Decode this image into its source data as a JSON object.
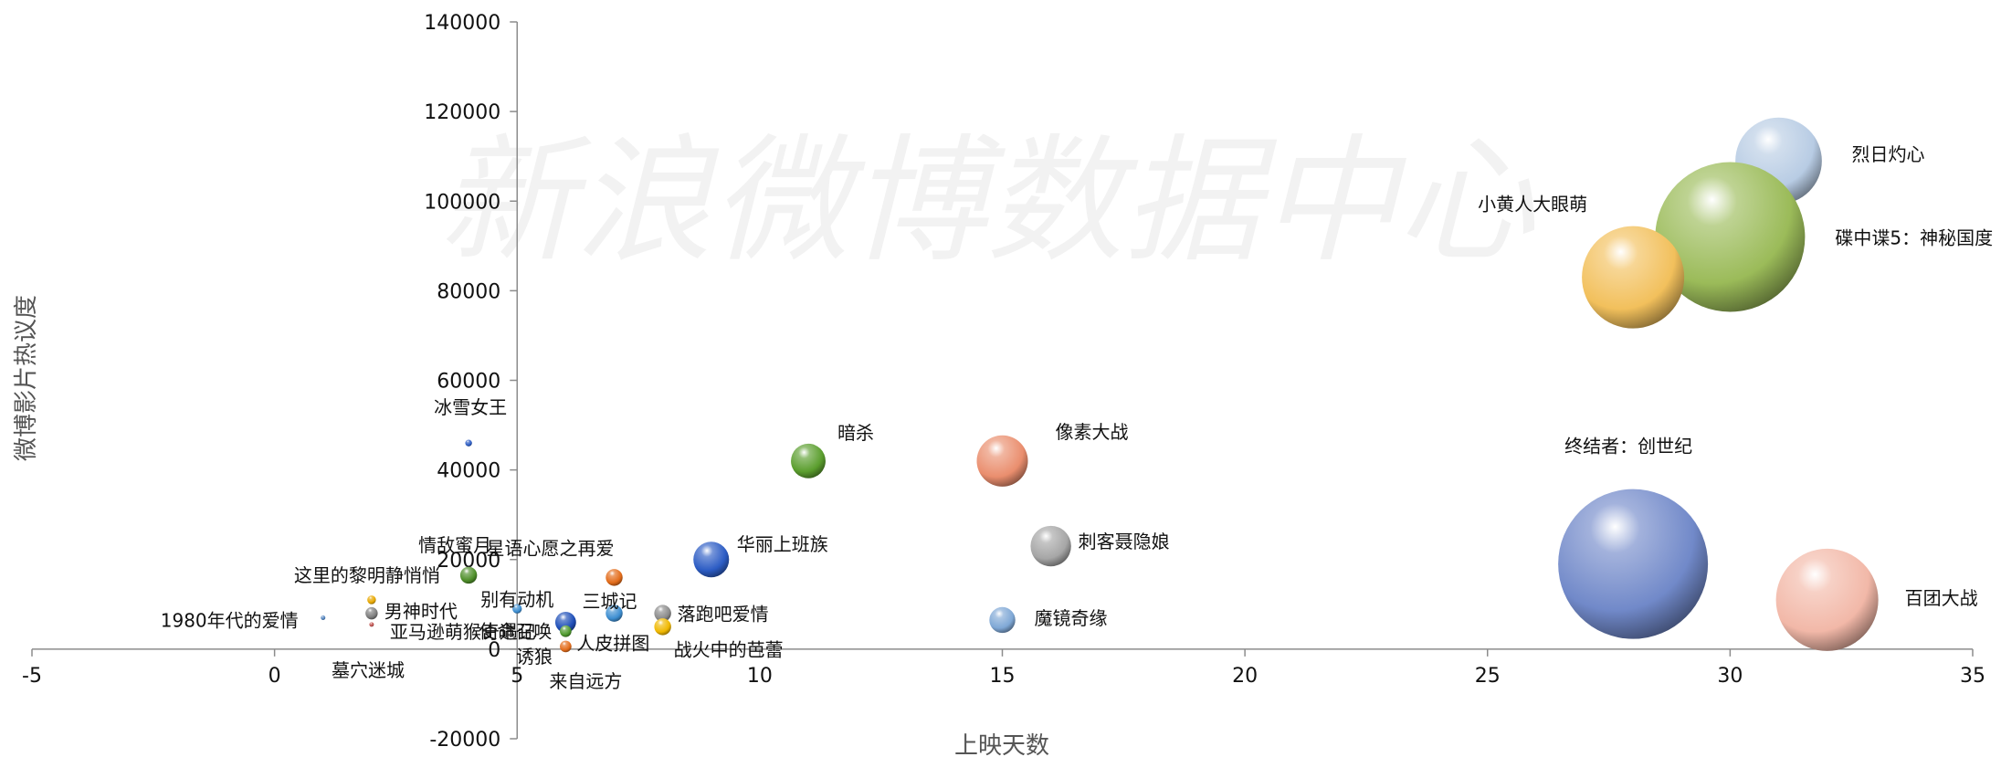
{
  "watermark": "新浪微博数据中心",
  "chart_data": {
    "type": "bubble",
    "xlabel": "上映天数",
    "ylabel": "微博影片热议度",
    "xlim": [
      -5,
      35
    ],
    "ylim": [
      -20000,
      140000
    ],
    "x_ticks": [
      -5,
      0,
      5,
      10,
      15,
      20,
      25,
      30,
      35
    ],
    "y_ticks": [
      -20000,
      0,
      20000,
      40000,
      60000,
      80000,
      100000,
      120000,
      140000
    ],
    "grid": false,
    "legend": "none",
    "points": [
      {
        "name": "烈日灼心",
        "x": 31,
        "y": 109000,
        "size": 10000,
        "color": "#b8cce4"
      },
      {
        "name": "碟中谍5：神秘国度",
        "x": 30,
        "y": 92000,
        "size": 30000,
        "color": "#9bbb59"
      },
      {
        "name": "小黄人大眼萌",
        "x": 28,
        "y": 83000,
        "size": 14000,
        "color": "#f2c05c"
      },
      {
        "name": "终结者：创世纪",
        "x": 28,
        "y": 19000,
        "size": 30000,
        "color": "#7189c9"
      },
      {
        "name": "百团大战",
        "x": 32,
        "y": 11000,
        "size": 14000,
        "color": "#f2b8a8"
      },
      {
        "name": "像素大战",
        "x": 15,
        "y": 42000,
        "size": 3500,
        "color": "#ea8e6e"
      },
      {
        "name": "暗杀",
        "x": 11,
        "y": 42000,
        "size": 1600,
        "color": "#5b9e2e"
      },
      {
        "name": "刺客聂隐娘",
        "x": 16,
        "y": 23000,
        "size": 2200,
        "color": "#a6a6a6"
      },
      {
        "name": "华丽上班族",
        "x": 9,
        "y": 20000,
        "size": 1700,
        "color": "#2c5cc4"
      },
      {
        "name": "魔镜奇缘",
        "x": 15,
        "y": 6500,
        "size": 900,
        "color": "#7fa8d6"
      },
      {
        "name": "冰雪女王",
        "x": 4,
        "y": 46000,
        "size": 60,
        "color": "#2c5cc4"
      },
      {
        "name": "情敌蜜月",
        "x": 4,
        "y": 16500,
        "size": 380,
        "color": "#4f8f2a"
      },
      {
        "name": "星语心愿之再爱",
        "x": 7,
        "y": 16000,
        "size": 380,
        "color": "#e36c1a"
      },
      {
        "name": "三城记",
        "x": 7,
        "y": 8000,
        "size": 380,
        "color": "#3d8ed1"
      },
      {
        "name": "别有动机",
        "x": 5,
        "y": 9000,
        "size": 120,
        "color": "#3d8ed1"
      },
      {
        "name": "落跑吧爱情",
        "x": 8,
        "y": 8000,
        "size": 380,
        "color": "#8c8c8c"
      },
      {
        "name": "使命召唤",
        "x": 6,
        "y": 6000,
        "size": 580,
        "color": "#1f4fb8"
      },
      {
        "name": "战火中的芭蕾",
        "x": 8,
        "y": 5000,
        "size": 380,
        "color": "#f0b800"
      },
      {
        "name": "人皮拼图",
        "x": 6,
        "y": 4000,
        "size": 180,
        "color": "#4f9a2e"
      },
      {
        "name": "来自远方",
        "x": 6,
        "y": 600,
        "size": 180,
        "color": "#e36c1a"
      },
      {
        "name": "这里的黎明静悄悄",
        "x": 2,
        "y": 11000,
        "size": 100,
        "color": "#e8a800"
      },
      {
        "name": "男神时代",
        "x": 2,
        "y": 8000,
        "size": 200,
        "color": "#7f7f7f"
      },
      {
        "name": "亚马逊萌猴奇遇记",
        "x": 2,
        "y": 5500,
        "size": 25,
        "color": "#c0504d"
      },
      {
        "name": "1980年代的爱情",
        "x": 1,
        "y": 7000,
        "size": 8,
        "color": "#4f81bd"
      },
      {
        "name": "墓穴迷城",
        "x": null,
        "y": null,
        "size": null,
        "color": "#4f81bd"
      },
      {
        "name": "诱狼",
        "x": null,
        "y": null,
        "size": null,
        "color": "#4f81bd"
      }
    ]
  }
}
